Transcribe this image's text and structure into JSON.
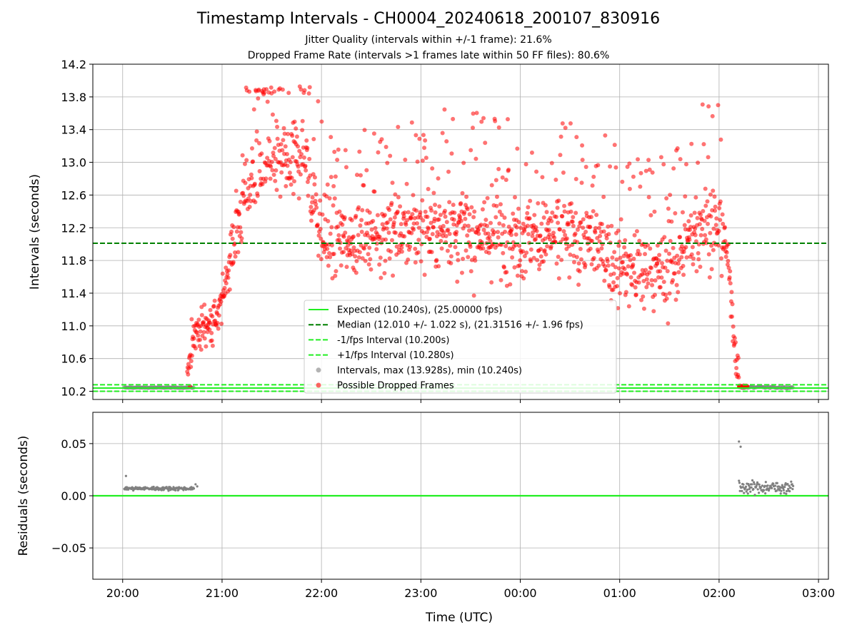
{
  "chart_data": [
    {
      "type": "scatter",
      "title": "Timestamp Intervals - CH0004_20240618_200107_830916",
      "subtitle_1": "Jitter Quality (intervals within +/-1 frame): 21.6%",
      "subtitle_2": "Dropped Frame Rate (intervals >1 frames late within 50 FF files): 80.6%",
      "ylabel": "Intervals (seconds)",
      "ylim": [
        10.1,
        14.2
      ],
      "yticks": [
        "10.2",
        "10.6",
        "11.0",
        "11.4",
        "11.8",
        "12.2",
        "12.6",
        "13.0",
        "13.4",
        "13.8",
        "14.2"
      ],
      "x_time_range": [
        "19:42",
        "03:06"
      ],
      "grid": true,
      "legend_position": "lower-center",
      "reference_lines": [
        {
          "label": "Expected (10.240s), (25.00000 fps)",
          "y": 10.24,
          "style": "solid",
          "color": "#22ee22"
        },
        {
          "label": "Median (12.010 +/- 1.022 s), (21.31516 +/- 1.96 fps)",
          "y": 12.01,
          "style": "dashed",
          "color": "#008000"
        },
        {
          "label": "-1/fps Interval (10.200s)",
          "y": 10.2,
          "style": "dashed",
          "color": "#22ee22"
        },
        {
          "label": "+1/fps Interval (10.280s)",
          "y": 10.28,
          "style": "dashed",
          "color": "#22ee22"
        }
      ],
      "series": [
        {
          "name": "Intervals, max (13.928s), min (10.240s)",
          "color": "#808080",
          "segments": [
            {
              "t_start": "20:01",
              "t_end": "20:43",
              "y": 10.245,
              "spread": 0.003
            },
            {
              "t_start": "02:12",
              "t_end": "02:45",
              "y": 10.248,
              "spread": 0.008
            }
          ]
        },
        {
          "name": "Possible Dropped Frames",
          "color": "#ff0000",
          "trend": [
            [
              "20:39",
              10.4
            ],
            [
              "20:43",
              10.9
            ],
            [
              "20:50",
              11.0
            ],
            [
              "20:58",
              11.1
            ],
            [
              "21:05",
              11.85
            ],
            [
              "21:12",
              12.5
            ],
            [
              "21:20",
              12.85
            ],
            [
              "21:30",
              12.9
            ],
            [
              "21:40",
              13.0
            ],
            [
              "21:50",
              13.1
            ],
            [
              "22:00",
              12.1
            ],
            [
              "22:15",
              12.05
            ],
            [
              "22:30",
              12.15
            ],
            [
              "22:45",
              12.2
            ],
            [
              "23:00",
              12.2
            ],
            [
              "23:15",
              12.2
            ],
            [
              "23:30",
              12.15
            ],
            [
              "23:45",
              12.1
            ],
            [
              "00:00",
              12.1
            ],
            [
              "00:15",
              12.1
            ],
            [
              "00:30",
              12.1
            ],
            [
              "00:45",
              12.0
            ],
            [
              "01:00",
              11.75
            ],
            [
              "01:15",
              11.65
            ],
            [
              "01:30",
              11.65
            ],
            [
              "01:40",
              11.95
            ],
            [
              "01:50",
              12.3
            ],
            [
              "02:00",
              12.2
            ],
            [
              "02:05",
              11.9
            ],
            [
              "02:09",
              10.9
            ],
            [
              "02:12",
              10.3
            ]
          ],
          "max": 13.928
        }
      ],
      "legend": [
        "Expected (10.240s), (25.00000 fps)",
        "Median (12.010 +/- 1.022 s), (21.31516 +/- 1.96 fps)",
        "-1/fps Interval (10.200s)",
        "+1/fps Interval (10.280s)",
        "Intervals, max (13.928s), min (10.240s)",
        "Possible Dropped Frames"
      ]
    },
    {
      "type": "scatter",
      "ylabel": "Residuals (seconds)",
      "xlabel": "Time (UTC)",
      "ylim": [
        -0.08,
        0.08
      ],
      "yticks": [
        "−0.05",
        "0.00",
        "0.05"
      ],
      "xticks": [
        "20:00",
        "21:00",
        "22:00",
        "23:00",
        "00:00",
        "01:00",
        "02:00",
        "03:00"
      ],
      "x_time_range": [
        "19:42",
        "03:06"
      ],
      "grid": true,
      "zero_line_color": "#22ee22",
      "series": [
        {
          "name": "residuals",
          "color": "#808080",
          "segments": [
            {
              "t_start": "20:01",
              "t_end": "20:43",
              "y": 0.007,
              "spread": 0.0012
            },
            {
              "t_start": "02:12",
              "t_end": "02:45",
              "y": 0.008,
              "spread": 0.004
            }
          ],
          "outliers": [
            [
              "20:02",
              0.019
            ],
            [
              "20:44",
              0.011
            ],
            [
              "20:45",
              0.009
            ],
            [
              "02:12",
              0.052
            ],
            [
              "02:13",
              0.047
            ]
          ]
        }
      ]
    }
  ]
}
